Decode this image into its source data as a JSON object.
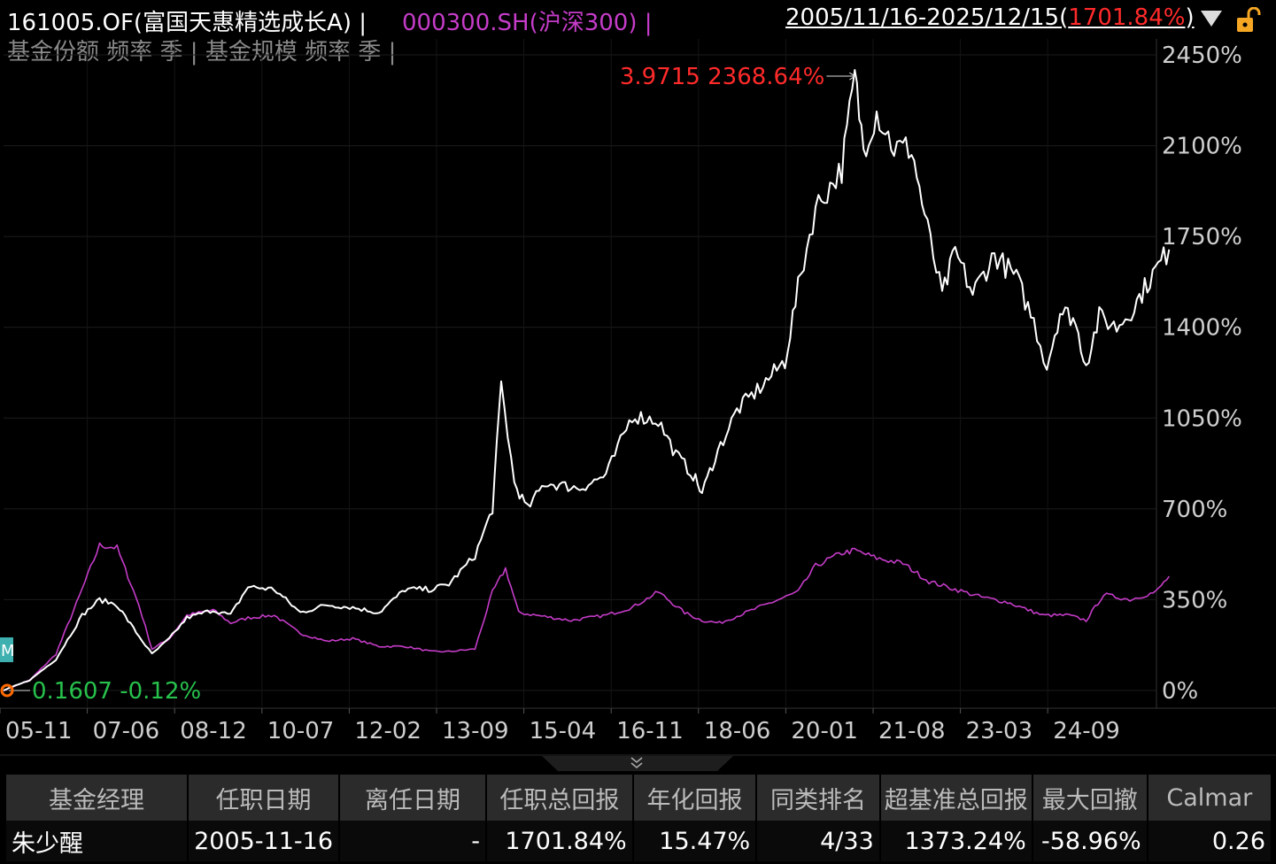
{
  "header": {
    "fund_label": "161005.OF(富国天惠精选成长A) |",
    "index_label": "000300.SH(沪深300) |",
    "range_label": "2005/11/16-2025/12/15(",
    "range_return": "1701.84%",
    "range_close": ")"
  },
  "toolbar": {
    "text": "基金份额 频率 季 | 基金规模 频率 季 |"
  },
  "chart_data": {
    "type": "line",
    "x": [
      "05-11",
      "07-06",
      "08-12",
      "10-07",
      "12-02",
      "13-09",
      "15-04",
      "16-11",
      "18-06",
      "20-01",
      "21-08",
      "23-03",
      "24-09"
    ],
    "y_ticks": [
      "2450%",
      "2100%",
      "1750%",
      "1400%",
      "1050%",
      "700%",
      "350%",
      "0%"
    ],
    "ylim": [
      0,
      2450
    ],
    "series": [
      {
        "name": "161005.OF",
        "color": "#ffffff",
        "points": [
          [
            0,
            0
          ],
          [
            0.3,
            40
          ],
          [
            0.6,
            120
          ],
          [
            0.9,
            290
          ],
          [
            1.1,
            350
          ],
          [
            1.3,
            330
          ],
          [
            1.55,
            210
          ],
          [
            1.7,
            140
          ],
          [
            1.9,
            200
          ],
          [
            2.1,
            280
          ],
          [
            2.4,
            310
          ],
          [
            2.6,
            290
          ],
          [
            2.8,
            400
          ],
          [
            3.1,
            390
          ],
          [
            3.4,
            300
          ],
          [
            3.7,
            330
          ],
          [
            4.0,
            320
          ],
          [
            4.3,
            300
          ],
          [
            4.6,
            390
          ],
          [
            4.9,
            390
          ],
          [
            5.1,
            410
          ],
          [
            5.4,
            520
          ],
          [
            5.6,
            700
          ],
          [
            5.7,
            1180
          ],
          [
            5.85,
            800
          ],
          [
            6.0,
            700
          ],
          [
            6.2,
            800
          ],
          [
            6.6,
            780
          ],
          [
            6.9,
            830
          ],
          [
            7.2,
            1060
          ],
          [
            7.5,
            1040
          ],
          [
            7.7,
            910
          ],
          [
            7.9,
            830
          ],
          [
            8.0,
            760
          ],
          [
            8.15,
            900
          ],
          [
            8.4,
            1080
          ],
          [
            8.7,
            1180
          ],
          [
            8.95,
            1270
          ],
          [
            9.1,
            1550
          ],
          [
            9.3,
            1860
          ],
          [
            9.6,
            2010
          ],
          [
            9.75,
            2368
          ],
          [
            9.85,
            2090
          ],
          [
            10.0,
            2230
          ],
          [
            10.2,
            2090
          ],
          [
            10.4,
            2090
          ],
          [
            10.55,
            1830
          ],
          [
            10.75,
            1520
          ],
          [
            10.9,
            1690
          ],
          [
            11.1,
            1530
          ],
          [
            11.35,
            1680
          ],
          [
            11.6,
            1590
          ],
          [
            11.8,
            1420
          ],
          [
            11.95,
            1250
          ],
          [
            12.1,
            1460
          ],
          [
            12.25,
            1440
          ],
          [
            12.4,
            1260
          ],
          [
            12.55,
            1440
          ],
          [
            12.75,
            1400
          ],
          [
            12.95,
            1480
          ],
          [
            13.1,
            1570
          ],
          [
            13.35,
            1700
          ]
        ]
      },
      {
        "name": "000300.SH",
        "color": "#c53cc8",
        "points": [
          [
            0,
            0
          ],
          [
            0.3,
            40
          ],
          [
            0.6,
            140
          ],
          [
            0.9,
            390
          ],
          [
            1.1,
            560
          ],
          [
            1.3,
            550
          ],
          [
            1.55,
            330
          ],
          [
            1.7,
            160
          ],
          [
            1.9,
            200
          ],
          [
            2.1,
            290
          ],
          [
            2.4,
            310
          ],
          [
            2.6,
            260
          ],
          [
            2.8,
            280
          ],
          [
            3.1,
            290
          ],
          [
            3.4,
            220
          ],
          [
            3.7,
            190
          ],
          [
            4.0,
            200
          ],
          [
            4.3,
            170
          ],
          [
            4.6,
            170
          ],
          [
            4.9,
            150
          ],
          [
            5.1,
            150
          ],
          [
            5.4,
            160
          ],
          [
            5.6,
            380
          ],
          [
            5.75,
            470
          ],
          [
            5.9,
            300
          ],
          [
            6.1,
            290
          ],
          [
            6.5,
            270
          ],
          [
            6.9,
            290
          ],
          [
            7.2,
            320
          ],
          [
            7.5,
            380
          ],
          [
            7.8,
            300
          ],
          [
            8.0,
            270
          ],
          [
            8.2,
            260
          ],
          [
            8.5,
            300
          ],
          [
            8.8,
            340
          ],
          [
            9.1,
            380
          ],
          [
            9.3,
            480
          ],
          [
            9.6,
            530
          ],
          [
            9.75,
            540
          ],
          [
            10.0,
            510
          ],
          [
            10.3,
            490
          ],
          [
            10.6,
            420
          ],
          [
            10.9,
            390
          ],
          [
            11.2,
            360
          ],
          [
            11.5,
            340
          ],
          [
            11.9,
            290
          ],
          [
            12.2,
            290
          ],
          [
            12.4,
            270
          ],
          [
            12.6,
            370
          ],
          [
            12.9,
            350
          ],
          [
            13.2,
            380
          ],
          [
            13.35,
            440
          ]
        ]
      }
    ],
    "annotations": [
      {
        "text": "3.9715 2368.64%",
        "color": "#ff2a2a",
        "at": [
          9.75,
          2368
        ]
      },
      {
        "text": "0.1607 -0.12%",
        "color": "#27c24c",
        "at": [
          0,
          0
        ]
      }
    ],
    "marker_label": "M"
  },
  "table": {
    "headers": [
      "基金经理",
      "任职日期",
      "离任日期",
      "任职总回报",
      "年化回报",
      "同类排名",
      "超基准总回报",
      "最大回撤",
      "Calmar"
    ],
    "rows": [
      [
        "朱少醒",
        "2005-11-16",
        "-",
        "1701.84%",
        "15.47%",
        "4/33",
        "1373.24%",
        "-58.96%",
        "0.26"
      ]
    ]
  },
  "colors": {
    "fund_line": "#ffffff",
    "index_line": "#c53cc8",
    "up": "#ff2a2a",
    "down": "#27c24c",
    "bg": "#000000"
  }
}
